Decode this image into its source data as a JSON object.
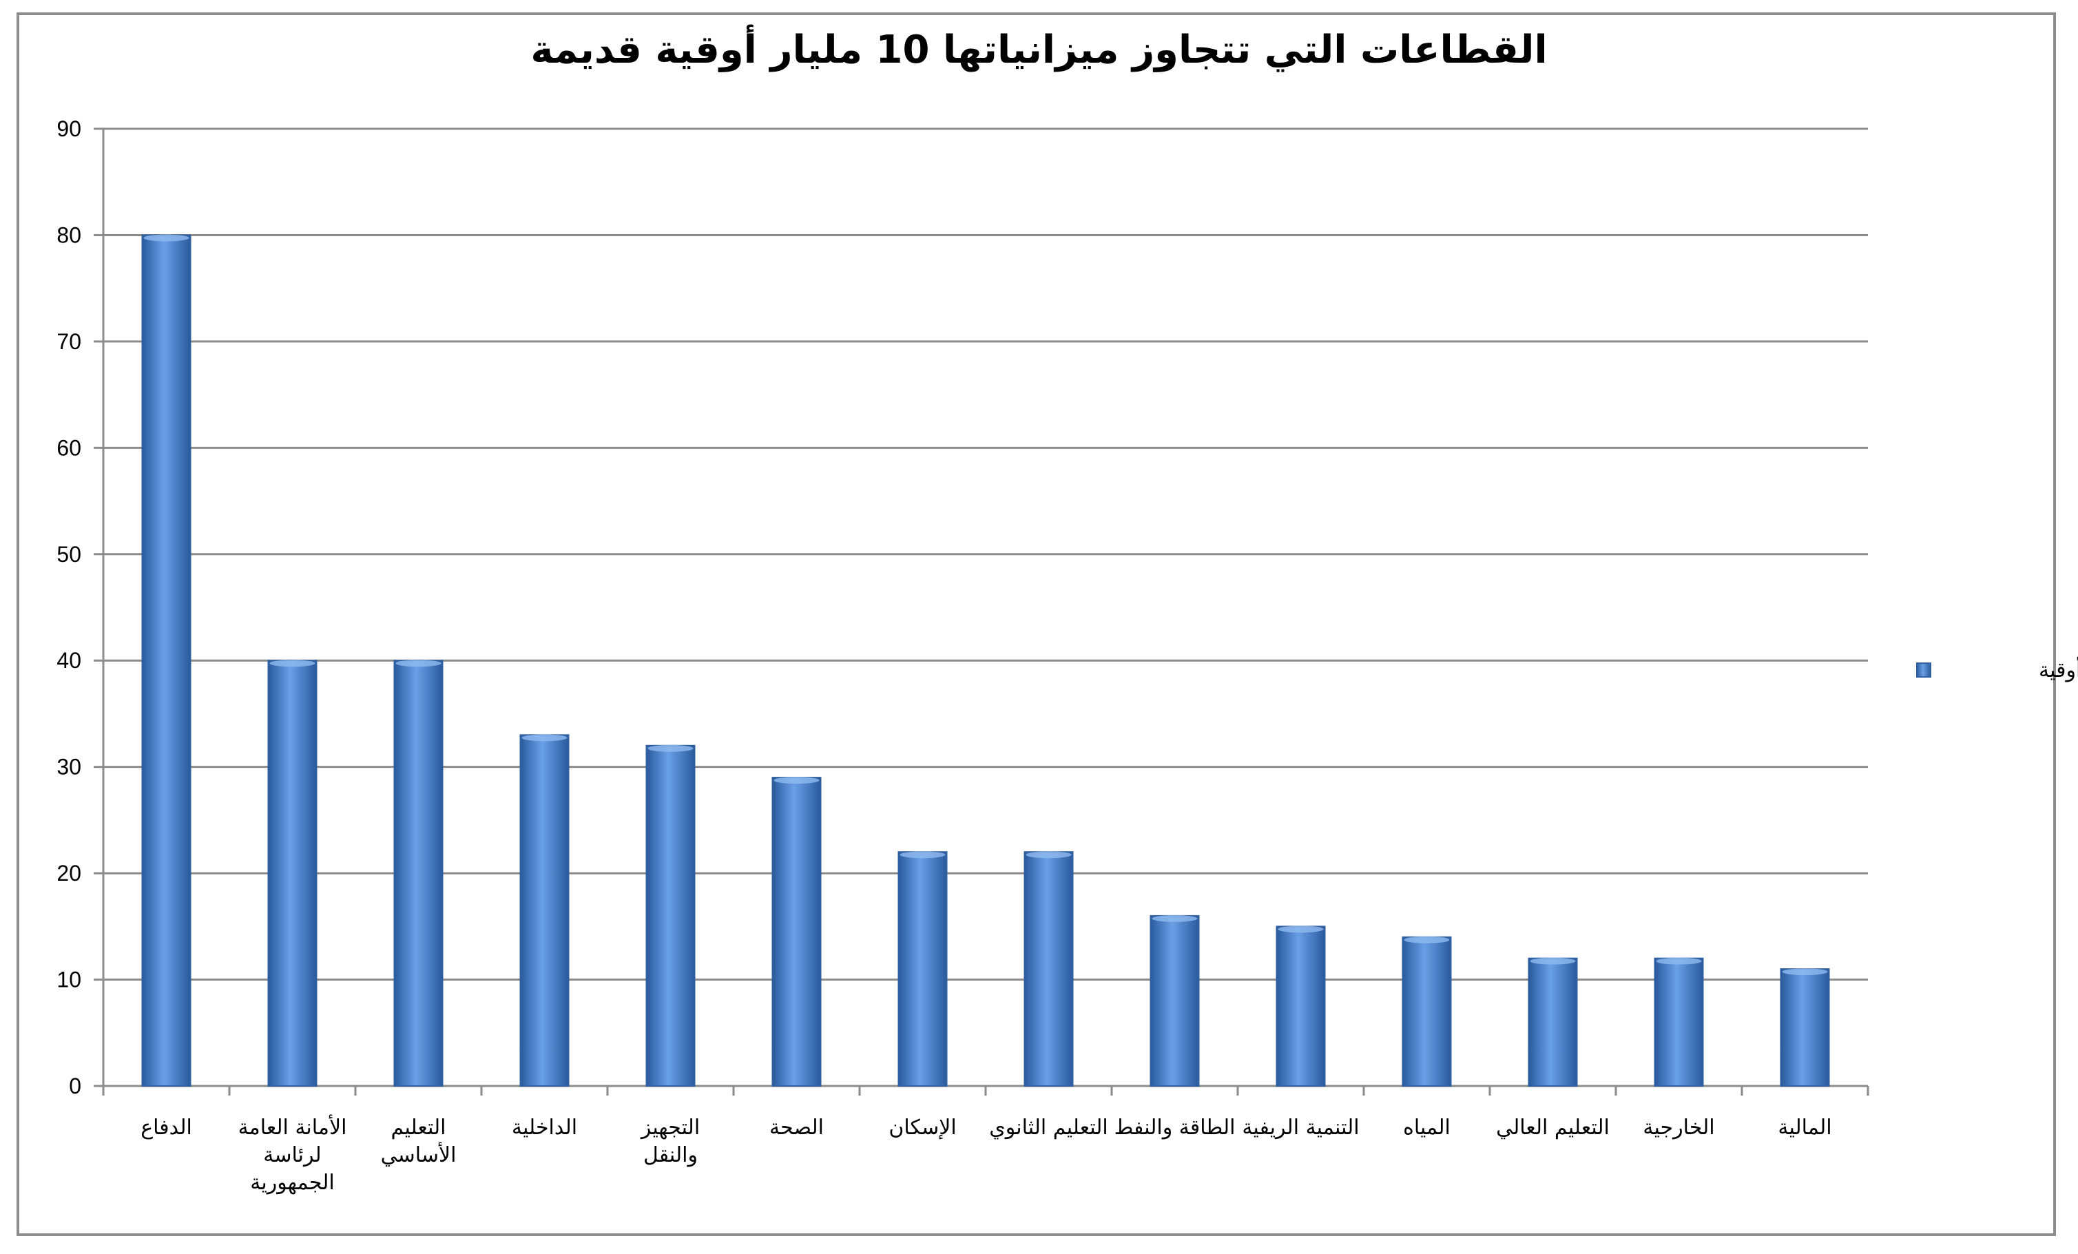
{
  "chart_data": {
    "type": "bar",
    "title": "القطاعات التي تتجاوز ميزانياتها 10 مليار أوقية قديمة",
    "xlabel": "",
    "ylabel": "",
    "ylim": [
      0,
      90
    ],
    "yticks": [
      0,
      10,
      20,
      30,
      40,
      50,
      60,
      70,
      80,
      90
    ],
    "grid": true,
    "legend_position": "right",
    "categories": [
      [
        "الدفاع"
      ],
      [
        "الأمانة العامة",
        "لرئاسة",
        "الجمهورية"
      ],
      [
        "التعليم",
        "الأساسي"
      ],
      [
        "الداخلية"
      ],
      [
        "التجهيز",
        "والنقل"
      ],
      [
        "الصحة"
      ],
      [
        "الإسكان"
      ],
      [
        "التعليم الثانوي"
      ],
      [
        "الطاقة والنفط"
      ],
      [
        "التنمية الريفية"
      ],
      [
        "المياه"
      ],
      [
        "التعليم العالي"
      ],
      [
        "الخارجية"
      ],
      [
        "المالية"
      ]
    ],
    "series": [
      {
        "name": "مليار أوقية",
        "color": "#4a7fc8",
        "values": [
          80,
          40,
          40,
          33,
          32,
          29,
          22,
          22,
          16,
          15,
          14,
          12,
          12,
          11
        ]
      }
    ]
  }
}
